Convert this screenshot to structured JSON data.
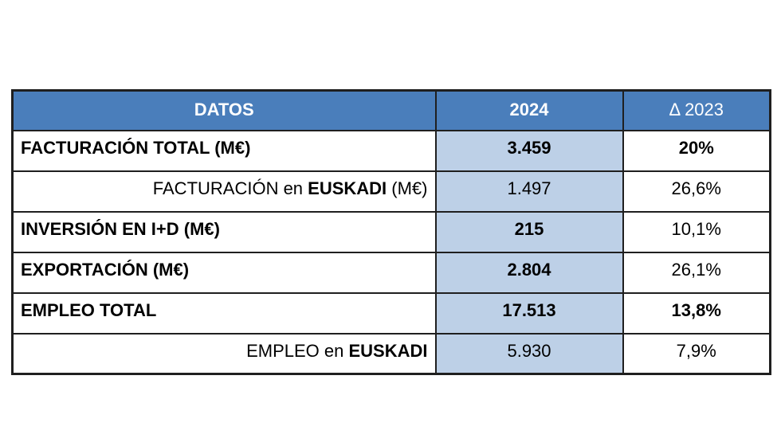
{
  "table": {
    "header": {
      "col_label": "DATOS",
      "col_2024": "2024",
      "col_delta": "Δ 2023"
    },
    "colors": {
      "header_bg": "#4A7EBB",
      "header_text": "#FFFFFF",
      "col_2024_bg": "#BDD0E7",
      "border": "#1F1F1F",
      "text": "#000000",
      "page_bg": "#FFFFFF"
    },
    "rows": [
      {
        "label_parts": [
          {
            "text": "FACTURACIÓN TOTAL (M€)",
            "bold": true
          }
        ],
        "align": "left",
        "value_2024": "3.459",
        "value_2024_bold": true,
        "delta_2023": "20%",
        "delta_2023_bold": true
      },
      {
        "label_parts": [
          {
            "text": "FACTURACIÓN en ",
            "bold": false
          },
          {
            "text": "EUSKADI",
            "bold": true
          },
          {
            "text": " (M€)",
            "bold": false
          }
        ],
        "align": "right",
        "value_2024": "1.497",
        "value_2024_bold": false,
        "delta_2023": "26,6%",
        "delta_2023_bold": false
      },
      {
        "label_parts": [
          {
            "text": "INVERSIÓN EN I+D (M€)",
            "bold": true
          }
        ],
        "align": "left",
        "value_2024": "215",
        "value_2024_bold": true,
        "delta_2023": "10,1%",
        "delta_2023_bold": false
      },
      {
        "label_parts": [
          {
            "text": "EXPORTACIÓN (M€)",
            "bold": true
          }
        ],
        "align": "left",
        "value_2024": "2.804",
        "value_2024_bold": true,
        "delta_2023": "26,1%",
        "delta_2023_bold": false
      },
      {
        "label_parts": [
          {
            "text": "EMPLEO TOTAL",
            "bold": true
          }
        ],
        "align": "left",
        "value_2024": "17.513",
        "value_2024_bold": true,
        "delta_2023": "13,8%",
        "delta_2023_bold": true
      },
      {
        "label_parts": [
          {
            "text": "EMPLEO en ",
            "bold": false
          },
          {
            "text": "EUSKADI",
            "bold": true
          }
        ],
        "align": "right",
        "value_2024": "5.930",
        "value_2024_bold": false,
        "delta_2023": "7,9%",
        "delta_2023_bold": false
      }
    ]
  },
  "chart_data": {
    "type": "table",
    "title": "DATOS",
    "columns": [
      "DATOS",
      "2024",
      "Δ 2023"
    ],
    "rows": [
      [
        "FACTURACIÓN TOTAL (M€)",
        "3.459",
        "20%"
      ],
      [
        "FACTURACIÓN en EUSKADI (M€)",
        "1.497",
        "26,6%"
      ],
      [
        "INVERSIÓN EN I+D (M€)",
        "215",
        "10,1%"
      ],
      [
        "EXPORTACIÓN (M€)",
        "2.804",
        "26,1%"
      ],
      [
        "EMPLEO TOTAL",
        "17.513",
        "13,8%"
      ],
      [
        "EMPLEO en EUSKADI",
        "5.930",
        "7,9%"
      ]
    ]
  }
}
